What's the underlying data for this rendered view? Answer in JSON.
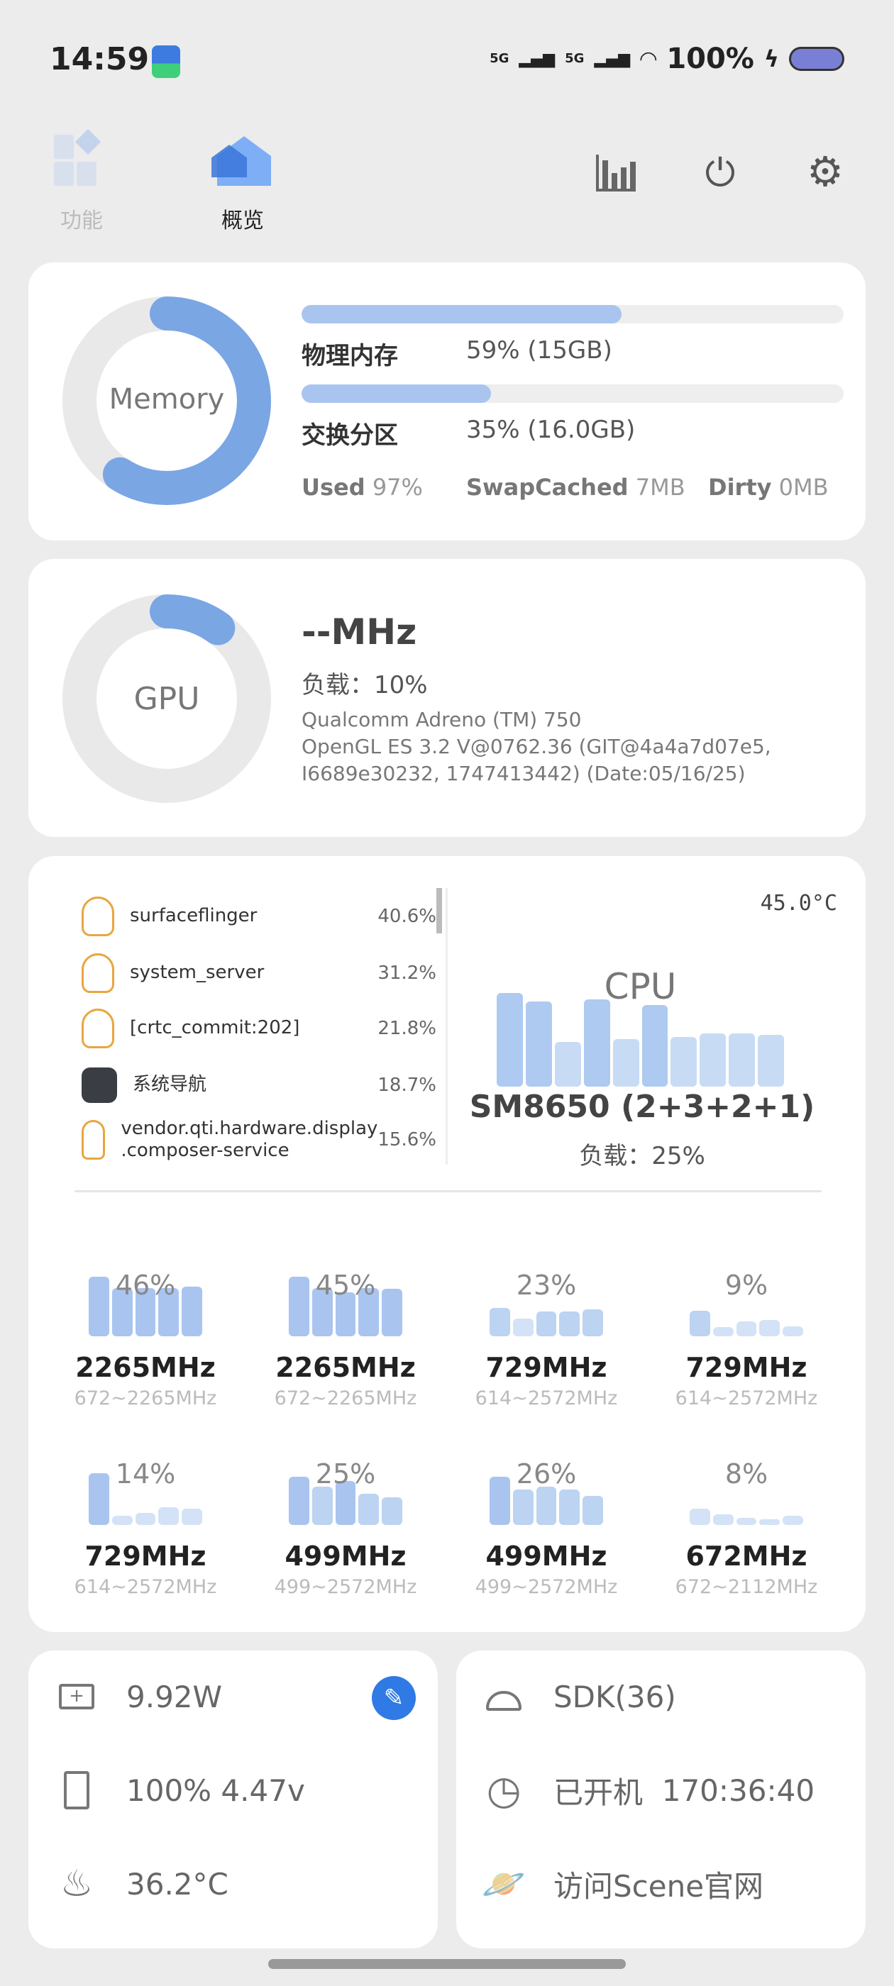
{
  "status_bar": {
    "time": "14:59",
    "network1": "5G",
    "network2": "5G",
    "battery": "100%"
  },
  "tabs": [
    {
      "label": "功能",
      "active": false
    },
    {
      "label": "概览",
      "active": true
    }
  ],
  "toolbar": {
    "icons": [
      "bar-chart-icon",
      "power-icon",
      "gear-icon"
    ]
  },
  "memory": {
    "title": "Memory",
    "percent": 59,
    "physical_label": "物理内存",
    "physical_value": "59% (15GB)",
    "swap_label": "交换分区",
    "swap_value": "35% (16.0GB)",
    "swap_percent": 35,
    "used_label": "Used",
    "used_value": "97%",
    "swapcached_label": "SwapCached",
    "swapcached_value": "7MB",
    "dirty_label": "Dirty",
    "dirty_value": "0MB"
  },
  "gpu": {
    "title": "GPU",
    "percent": 10,
    "freq": "--MHz",
    "load": "负载：10%",
    "renderer": "Qualcomm Adreno (TM) 750",
    "gl_line1": "OpenGL ES 3.2 V@0762.36 (GIT@4a4a7d07e5,",
    "gl_line2": "I6689e30232, 1747413442) (Date:05/16/25)"
  },
  "cpu": {
    "temp": "45.0°C",
    "title": "CPU",
    "soc": "SM8650 (2+3+2+1)",
    "load": "负载：25%",
    "history": [
      100,
      91,
      48,
      93,
      51,
      87,
      53,
      57,
      57,
      55
    ],
    "processes": [
      {
        "name": "surfaceflinger",
        "pct": "40.6%",
        "icon": "linux-penguin-icon"
      },
      {
        "name": "system_server",
        "pct": "31.2%",
        "icon": "linux-penguin-icon"
      },
      {
        "name": "[crtc_commit:202]",
        "pct": "21.8%",
        "icon": "linux-penguin-icon"
      },
      {
        "name": "系统导航",
        "pct": "18.7%",
        "icon": "app-icon"
      },
      {
        "name": "vendor.qti.hardware.display\n.composer-service",
        "pct": "15.6%",
        "icon": "linux-penguin-icon"
      }
    ],
    "cores": [
      {
        "load": "46%",
        "freq": "2265MHz",
        "range": "672~2265MHz",
        "history": [
          100,
          81,
          81,
          81,
          83
        ]
      },
      {
        "load": "45%",
        "freq": "2265MHz",
        "range": "672~2265MHz",
        "history": [
          100,
          81,
          74,
          81,
          80
        ]
      },
      {
        "load": "23%",
        "freq": "729MHz",
        "range": "614~2572MHz",
        "history": [
          48,
          30,
          42,
          42,
          45
        ]
      },
      {
        "load": "9%",
        "freq": "729MHz",
        "range": "614~2572MHz",
        "history": [
          43,
          16,
          25,
          27,
          17
        ]
      },
      {
        "load": "14%",
        "freq": "729MHz",
        "range": "614~2572MHz",
        "history": [
          87,
          15,
          20,
          30,
          27
        ]
      },
      {
        "load": "25%",
        "freq": "499MHz",
        "range": "499~2572MHz",
        "history": [
          81,
          64,
          74,
          52,
          46
        ]
      },
      {
        "load": "26%",
        "freq": "499MHz",
        "range": "499~2572MHz",
        "history": [
          81,
          60,
          64,
          59,
          49
        ]
      },
      {
        "load": "8%",
        "freq": "672MHz",
        "range": "672~2112MHz",
        "history": [
          27,
          18,
          12,
          10,
          16
        ]
      }
    ]
  },
  "power": {
    "watts": "9.92W",
    "battery": "100%  4.47v",
    "temp": "36.2°C"
  },
  "system": {
    "sdk": "SDK(36)",
    "uptime_label": "已开机",
    "uptime": "170:36:40",
    "website": "访问Scene官网"
  },
  "colors": {
    "accent": "#7aa6e4",
    "bar": "#a9c5ef",
    "edit_button": "#2f7ae5"
  }
}
